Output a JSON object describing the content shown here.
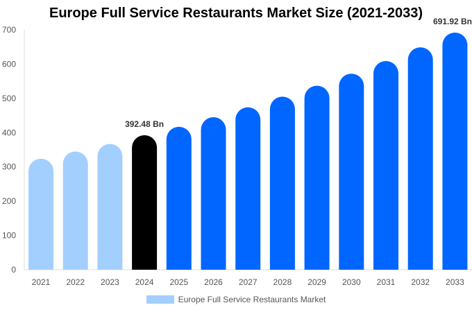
{
  "chart_data": {
    "type": "bar",
    "title": "Europe Full Service Restaurants Market Size (2021-2033)",
    "categories": [
      "2021",
      "2022",
      "2023",
      "2024",
      "2025",
      "2026",
      "2027",
      "2028",
      "2029",
      "2030",
      "2031",
      "2032",
      "2033"
    ],
    "series": [
      {
        "name": "Europe Full Service Restaurants Market",
        "values": [
          324,
          345,
          367,
          392.48,
          417,
          445,
          474,
          505,
          537,
          572,
          609,
          649,
          691.92
        ]
      }
    ],
    "data_labels": {
      "3": "392.48 Bn",
      "12": "691.92 Bn"
    },
    "ylim": [
      0,
      700
    ],
    "yticks": [
      0,
      100,
      200,
      300,
      400,
      500,
      600,
      700
    ],
    "xlabel": "",
    "ylabel": "",
    "grid": false,
    "legend_position": "bottom",
    "colors": {
      "historical": "#a3cfff",
      "current": "#000000",
      "forecast": "#0066ff",
      "legend": "#a3cfff"
    }
  }
}
